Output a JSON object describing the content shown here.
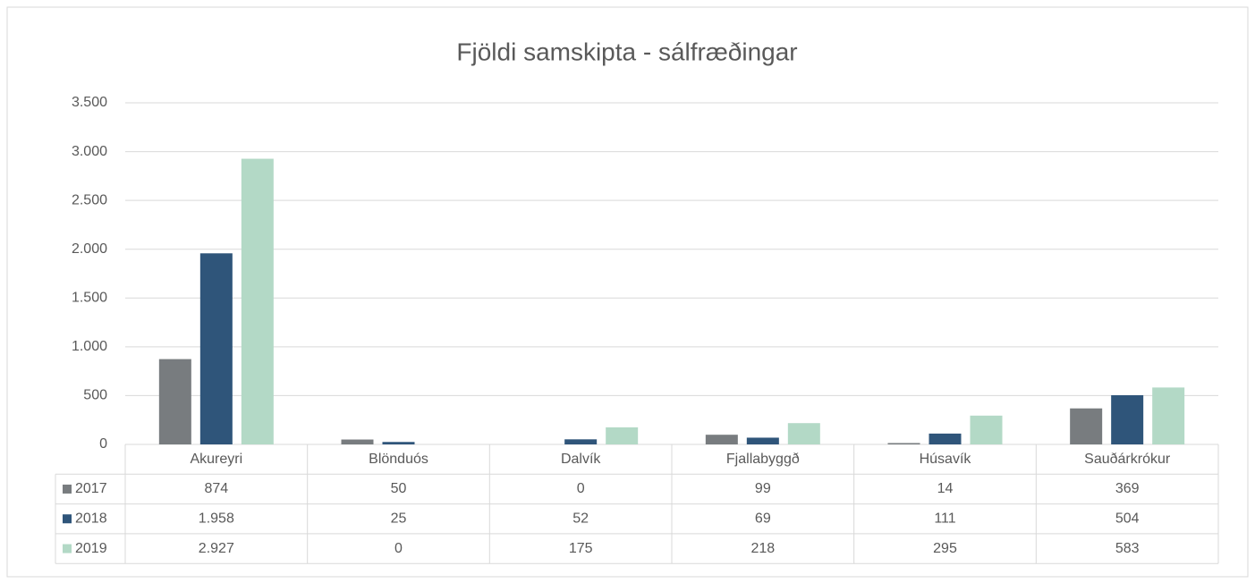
{
  "chart_data": {
    "type": "bar",
    "title": "Fjöldi samskipta - sálfræðingar",
    "categories": [
      "Akureyri",
      "Blönduós",
      "Dalvík",
      "Fjallabyggð",
      "Húsavík",
      "Sauðárkrókur"
    ],
    "series": [
      {
        "name": "2017",
        "color": "#787c7f",
        "values": [
          874,
          50,
          0,
          99,
          14,
          369
        ],
        "value_labels": [
          "874",
          "50",
          "0",
          "99",
          "14",
          "369"
        ]
      },
      {
        "name": "2018",
        "color": "#2f557a",
        "values": [
          1958,
          25,
          52,
          69,
          111,
          504
        ],
        "value_labels": [
          "1.958",
          "25",
          "52",
          "69",
          "111",
          "504"
        ]
      },
      {
        "name": "2019",
        "color": "#b3d9c6",
        "values": [
          2927,
          0,
          175,
          218,
          295,
          583
        ],
        "value_labels": [
          "2.927",
          "0",
          "175",
          "218",
          "295",
          "583"
        ]
      }
    ],
    "ylim": [
      0,
      3500
    ],
    "yticks": [
      0,
      500,
      {
        "value": 1000,
        "label": "1.000"
      },
      {
        "value": 1500,
        "label": "1.500"
      },
      {
        "value": 2000,
        "label": "2.000"
      },
      {
        "value": 2500,
        "label": "2.500"
      },
      {
        "value": 3000,
        "label": "3.000"
      },
      {
        "value": 3500,
        "label": "3.500"
      }
    ],
    "grid": true
  }
}
